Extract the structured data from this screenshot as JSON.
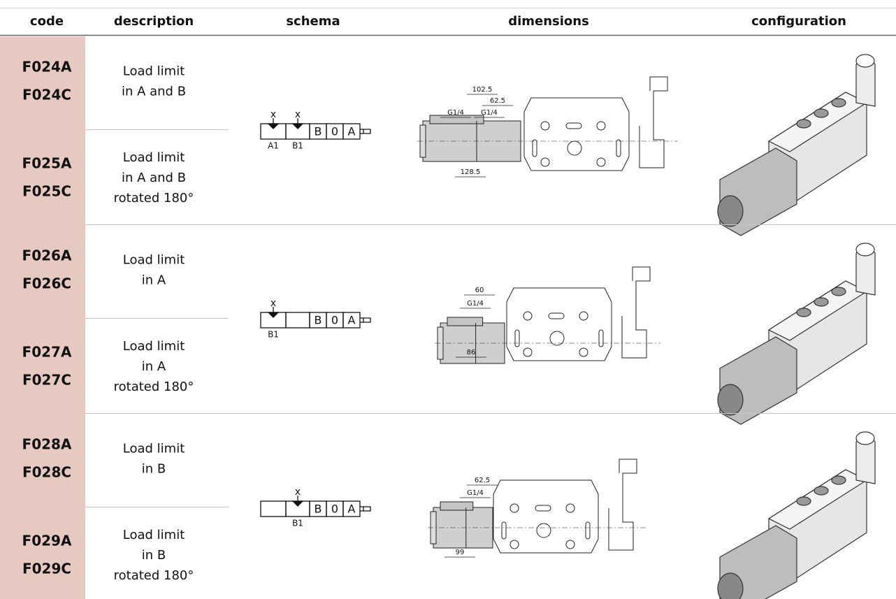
{
  "table": {
    "headers": [
      "code",
      "description",
      "schema",
      "dimensions",
      "configuration"
    ],
    "groups": [
      {
        "rows": [
          {
            "codes": [
              "F024A",
              "F024C"
            ],
            "description": [
              "Load limit",
              "in A and B"
            ]
          },
          {
            "codes": [
              "F025A",
              "F025C"
            ],
            "description": [
              "Load limit",
              "in A and B",
              "rotated 180°"
            ]
          }
        ],
        "schema": {
          "ports": [
            {
              "mark": "x",
              "label": "A1"
            },
            {
              "mark": "x",
              "label": "B1"
            }
          ],
          "positions": [
            "B",
            "0",
            "A"
          ]
        },
        "dimensions": [
          "102.5",
          "62.5",
          "G1/4",
          "G1/4",
          "128.5"
        ]
      },
      {
        "rows": [
          {
            "codes": [
              "F026A",
              "F026C"
            ],
            "description": [
              "Load limit",
              "in A"
            ]
          },
          {
            "codes": [
              "F027A",
              "F027C"
            ],
            "description": [
              "Load limit",
              "in A",
              "rotated 180°"
            ]
          }
        ],
        "schema": {
          "ports": [
            {
              "mark": "x",
              "label": "B1"
            },
            null
          ],
          "positions": [
            "B",
            "0",
            "A"
          ]
        },
        "dimensions": [
          "60",
          "G1/4",
          "86"
        ]
      },
      {
        "rows": [
          {
            "codes": [
              "F028A",
              "F028C"
            ],
            "description": [
              "Load limit",
              "in B"
            ]
          },
          {
            "codes": [
              "F029A",
              "F029C"
            ],
            "description": [
              "Load limit",
              "in B",
              "rotated 180°"
            ]
          }
        ],
        "schema": {
          "ports": [
            null,
            {
              "mark": "x",
              "label": "B1"
            }
          ],
          "positions": [
            "B",
            "0",
            "A"
          ]
        },
        "dimensions": [
          "62.5",
          "G1/4",
          "99"
        ]
      }
    ]
  }
}
